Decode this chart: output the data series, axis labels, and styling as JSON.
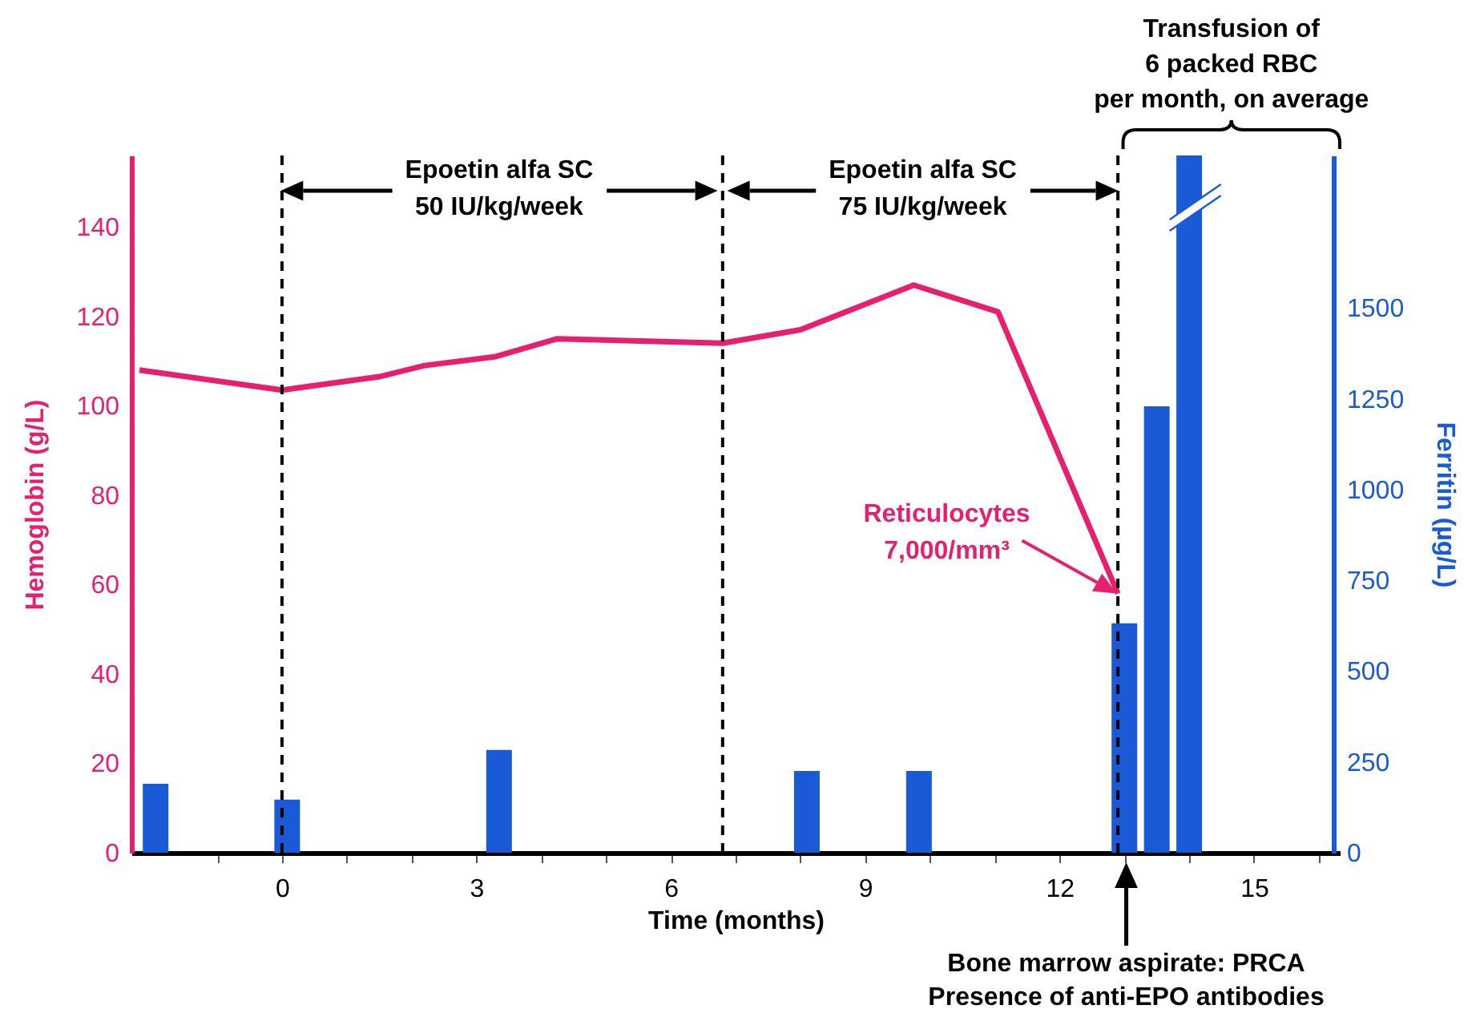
{
  "chart_data": {
    "type": "line",
    "xlabel": "Time (months)",
    "ylabel": "Hemoglobin (g/L)",
    "y2label": "Ferritin (µg/L)",
    "xlim": [
      -2.2,
      16.2
    ],
    "ylim": [
      0,
      156
    ],
    "y2lim": [
      0,
      1920
    ],
    "xticks": [
      {
        "value": -1,
        "label": null
      },
      0,
      {
        "value": 1,
        "label": null
      },
      {
        "value": 2,
        "label": null
      },
      3,
      {
        "value": 4,
        "label": null
      },
      {
        "value": 5,
        "label": null
      },
      6,
      {
        "value": 7,
        "label": null
      },
      {
        "value": 8,
        "label": null
      },
      9,
      {
        "value": 10,
        "label": null
      },
      {
        "value": 11,
        "label": null
      },
      12,
      {
        "value": 13,
        "label": null
      },
      {
        "value": 14,
        "label": null
      },
      15,
      {
        "value": 16,
        "label": null
      }
    ],
    "yticks": [
      0,
      20,
      40,
      60,
      80,
      100,
      120,
      140
    ],
    "y2ticks": [
      0,
      250,
      500,
      750,
      1000,
      1250,
      1500
    ],
    "series": [
      {
        "type": "bar",
        "axis": "y2",
        "color": "#1a5ad6",
        "x": [
          -1.95,
          0.08,
          3.35,
          8.1,
          9.83,
          13.0,
          13.5,
          14.0
        ],
        "values": [
          190,
          146,
          283,
          225,
          225,
          632,
          1229,
          1920
        ]
      },
      {
        "color": "#e6206e",
        "x": [
          -2.2,
          0,
          1.5,
          2.2,
          3.3,
          4.25,
          6.8,
          8.0,
          9.75,
          11.05,
          12.9
        ],
        "values": [
          108,
          103.5,
          106.5,
          109,
          111,
          115,
          114,
          117,
          127,
          121,
          58
        ]
      }
    ],
    "ref_lines": [
      {
        "axis": "x",
        "value": 0,
        "line_style": "dashed",
        "color": "#000000"
      },
      {
        "axis": "x",
        "value": 6.8,
        "line_style": "dashed",
        "color": "#000000"
      },
      {
        "axis": "x",
        "value": 12.9,
        "line_style": "dashed",
        "color": "#000000"
      }
    ],
    "annotations": [
      "Epoetin alfa SC\n50 IU/kg/week",
      "Epoetin alfa SC\n75 IU/kg/week",
      "Transfusion of\n6 packed RBC\nper month, on average",
      "Reticulocytes\n7,000/mm³",
      "Bone marrow aspirate: PRCA\nPresence of anti-EPO antibodies"
    ],
    "grid": false,
    "marker": "none",
    "line_style": "solid"
  }
}
